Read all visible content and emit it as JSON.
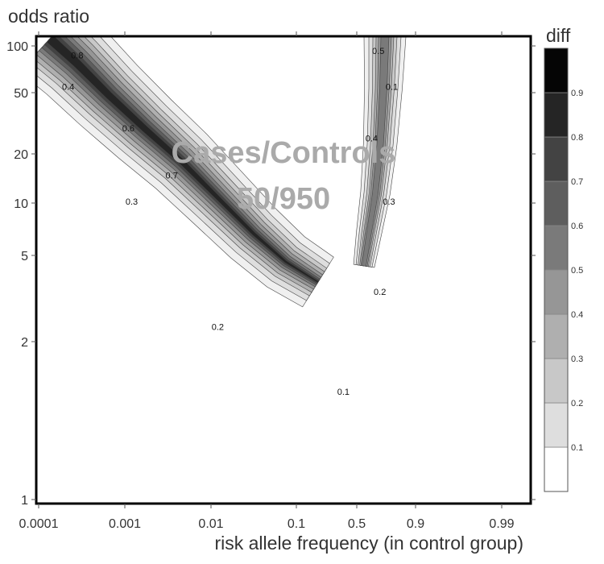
{
  "chart_data": {
    "type": "heatmap",
    "title": "",
    "xlabel": "risk allele frequency (in control group)",
    "ylabel": "odds ratio",
    "x_ticks": [
      "0.0001",
      "0.001",
      "0.01",
      "0.1",
      "0.5",
      "0.9",
      "0.99"
    ],
    "y_ticks": [
      "1",
      "2",
      "5",
      "10",
      "20",
      "50",
      "100"
    ],
    "y_scale": "log",
    "ylim": [
      1,
      100
    ],
    "annotation": [
      "Cases/Controls",
      "50/950"
    ],
    "colorbar": {
      "title": "diff",
      "levels": [
        0,
        0.1,
        0.2,
        0.3,
        0.4,
        0.5,
        0.6,
        0.7,
        0.8,
        0.9,
        1.0
      ],
      "tick_labels": [
        "0.1",
        "0.2",
        "0.3",
        "0.4",
        "0.5",
        "0.6",
        "0.7",
        "0.8",
        "0.9"
      ],
      "colors": [
        "#ffffff",
        "#f0f0f0",
        "#dedede",
        "#c8c8c8",
        "#afafaf",
        "#969696",
        "#7a7a7a",
        "#5e5e5e",
        "#434343",
        "#252525",
        "#050505"
      ]
    },
    "contour_labels": [
      {
        "text": "0.8",
        "x": 0.00028,
        "y": 88
      },
      {
        "text": "0.6",
        "x": 0.0011,
        "y": 42
      },
      {
        "text": "0.7",
        "x": 0.0035,
        "y": 26
      },
      {
        "text": "0.4",
        "x": 0.00022,
        "y": 64
      },
      {
        "text": "0.3",
        "x": 0.0012,
        "y": 20
      },
      {
        "text": "0.2",
        "x": 0.012,
        "y": 5.6
      },
      {
        "text": "0.1",
        "x": 0.35,
        "y": 2.9
      },
      {
        "text": "0.5",
        "x": 0.62,
        "y": 92
      },
      {
        "text": "0.1",
        "x": 0.71,
        "y": 64
      },
      {
        "text": "0.4",
        "x": 0.58,
        "y": 38
      },
      {
        "text": "0.3",
        "x": 0.69,
        "y": 20
      },
      {
        "text": "0.2",
        "x": 0.63,
        "y": 8.0
      }
    ]
  }
}
